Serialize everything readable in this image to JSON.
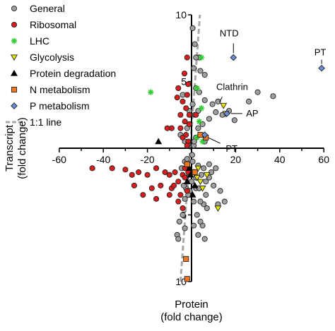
{
  "chart_data": {
    "type": "scatter",
    "xlabel": [
      "Protein",
      "(fold change)"
    ],
    "ylabel": [
      "Transcript",
      "(fold change)"
    ],
    "xlim": [
      -60,
      60
    ],
    "ylim": [
      -10,
      10
    ],
    "x_ticks": [
      -60,
      -40,
      -20,
      20,
      40,
      60
    ],
    "x_tick_labels": [
      "-60",
      "-40",
      "-20",
      "20",
      "40",
      "60"
    ],
    "y_ticks": [
      10,
      5,
      -5,
      -10
    ],
    "y_tick_labels": [
      "10",
      "5",
      "5",
      "10"
    ],
    "grid": false,
    "legend_position": "top-left",
    "legend": [
      {
        "key": "general",
        "label": "General"
      },
      {
        "key": "ribosomal",
        "label": "Ribosomal"
      },
      {
        "key": "lhc",
        "label": "LHC"
      },
      {
        "key": "glycolysis",
        "label": "Glycolysis"
      },
      {
        "key": "protein_degradation",
        "label": "Protein degradation"
      },
      {
        "key": "n_metabolism",
        "label": "N metabolism"
      },
      {
        "key": "p_metabolism",
        "label": "P metabolism"
      },
      {
        "key": "one_to_one",
        "label": "1:1 line"
      }
    ],
    "styles": {
      "general": {
        "color": "#a0a0a0",
        "marker": "circle"
      },
      "ribosomal": {
        "color": "#d81e1e",
        "marker": "circle"
      },
      "lhc": {
        "color": "#33cc33",
        "marker": "star"
      },
      "glycolysis": {
        "color": "#e6e600",
        "marker": "triangle-down"
      },
      "protein_degradation": {
        "color": "#000000",
        "marker": "triangle-up"
      },
      "n_metabolism": {
        "color": "#f07820",
        "marker": "square"
      },
      "p_metabolism": {
        "color": "#6a8fd6",
        "marker": "diamond"
      },
      "one_to_one": {
        "color": "#a8a8a8",
        "dash": "dashed"
      }
    },
    "one_to_one_line": {
      "x": [
        -5,
        3.8
      ],
      "y": [
        -10,
        10
      ]
    },
    "series": [
      {
        "key": "general",
        "points": [
          [
            0.5,
            9.0
          ],
          [
            1.5,
            7.8
          ],
          [
            3.5,
            6.8
          ],
          [
            6,
            5.5
          ],
          [
            2,
            6.8
          ],
          [
            1,
            6
          ],
          [
            4,
            5.8
          ],
          [
            2,
            4.5
          ],
          [
            3.5,
            4.2
          ],
          [
            6,
            3.6
          ],
          [
            9.5,
            3.3
          ],
          [
            12,
            3.5
          ],
          [
            17,
            2.8
          ],
          [
            19.5,
            2.1
          ],
          [
            26,
            3.5
          ],
          [
            30,
            4.2
          ],
          [
            37,
            3.9
          ],
          [
            14,
            2.5
          ],
          [
            11,
            2.7
          ],
          [
            8,
            2.2
          ],
          [
            5,
            1.8
          ],
          [
            3,
            1.5
          ],
          [
            1.5,
            2.5
          ],
          [
            0.5,
            3.3
          ],
          [
            -1,
            2.8
          ],
          [
            -2,
            1.5
          ],
          [
            2,
            0.8
          ],
          [
            4,
            1
          ],
          [
            6,
            0.5
          ],
          [
            -4,
            4
          ],
          [
            -5,
            1
          ],
          [
            -3,
            0.5
          ],
          [
            -1.5,
            0.3
          ],
          [
            1,
            0.2
          ],
          [
            3,
            2.8
          ],
          [
            0.5,
            -1
          ],
          [
            1.5,
            -1.8
          ],
          [
            3,
            -1.3
          ],
          [
            4.5,
            -2
          ],
          [
            5.5,
            -1.5
          ],
          [
            6.5,
            -2.5
          ],
          [
            8,
            -2.2
          ],
          [
            9,
            -1.8
          ],
          [
            10,
            -2.8
          ],
          [
            13,
            -3.2
          ],
          [
            15,
            -4
          ],
          [
            12,
            -4.2
          ],
          [
            6.5,
            -3.5
          ],
          [
            5.5,
            -4.2
          ],
          [
            4,
            -4
          ],
          [
            2.5,
            -5
          ],
          [
            1,
            -4
          ],
          [
            1,
            -5.8
          ],
          [
            3,
            -6.5
          ],
          [
            5,
            -5.8
          ],
          [
            6,
            -6.8
          ],
          [
            2,
            -3
          ],
          [
            0,
            -2.5
          ],
          [
            -0.8,
            -3.2
          ],
          [
            -1.5,
            -3.5
          ],
          [
            -2.5,
            -3
          ],
          [
            -3.5,
            -2.8
          ],
          [
            -4.5,
            -1.5
          ],
          [
            -3,
            -1
          ],
          [
            -2,
            -0.8
          ],
          [
            -3,
            -3.8
          ],
          [
            -4,
            -5
          ],
          [
            -5.5,
            -5.5
          ],
          [
            -6.5,
            -6.5
          ],
          [
            -6,
            -6.8
          ],
          [
            -3,
            -6
          ],
          [
            2,
            -2.2
          ],
          [
            3.5,
            -3
          ],
          [
            8,
            -1.2
          ],
          [
            11,
            -1.5
          ],
          [
            7,
            -4.5
          ],
          [
            4,
            -5.5
          ],
          [
            0.3,
            -0.5
          ],
          [
            1.2,
            0.5
          ],
          [
            -2.5,
            -2.2
          ]
        ]
      },
      {
        "key": "ribosomal",
        "points": [
          [
            -2,
            6.8
          ],
          [
            -3.2,
            5.6
          ],
          [
            -6,
            4.5
          ],
          [
            -1.5,
            4.8
          ],
          [
            -2,
            4
          ],
          [
            -4,
            3.5
          ],
          [
            -6.5,
            3.8
          ],
          [
            -2.5,
            3
          ],
          [
            -1,
            2.5
          ],
          [
            -5,
            2.5
          ],
          [
            -3,
            2
          ],
          [
            -9,
            1.5
          ],
          [
            -11,
            1.5
          ],
          [
            -5,
            1.5
          ],
          [
            -2.5,
            1
          ],
          [
            -4,
            0.8
          ],
          [
            -1.5,
            0.5
          ],
          [
            -1,
            1.8
          ],
          [
            2,
            2.5
          ],
          [
            -2,
            0.2
          ],
          [
            -16,
            -1.5
          ],
          [
            -24,
            -1.8
          ],
          [
            -27,
            -2
          ],
          [
            -30,
            -1.6
          ],
          [
            -36,
            -1.5
          ],
          [
            -45,
            -1.5
          ],
          [
            -20,
            -2
          ],
          [
            -12,
            -1.8
          ],
          [
            -10,
            -2
          ],
          [
            -6,
            -2.5
          ],
          [
            -4,
            -2
          ],
          [
            -3,
            -1.5
          ],
          [
            -1.5,
            -1.8
          ],
          [
            -14,
            -2.8
          ],
          [
            -18,
            -3
          ],
          [
            -22,
            -3.5
          ],
          [
            -9,
            -3
          ],
          [
            -5,
            -3.5
          ],
          [
            -10,
            -3.5
          ],
          [
            -6,
            -4
          ],
          [
            -4,
            -4.5
          ],
          [
            -2,
            -3.2
          ],
          [
            -8,
            -2.8
          ],
          [
            -3,
            -2.2
          ],
          [
            -7.5,
            -1.8
          ],
          [
            -26,
            -2.8
          ],
          [
            -16,
            -3.8
          ]
        ]
      },
      {
        "key": "lhc",
        "points": [
          [
            -18.5,
            4.2
          ],
          [
            4.5,
            6.8
          ],
          [
            2.5,
            4.5
          ],
          [
            4.5,
            3
          ],
          [
            3.5,
            2
          ],
          [
            2.5,
            0.8
          ],
          [
            5,
            0.5
          ]
        ]
      },
      {
        "key": "glycolysis",
        "points": [
          [
            14.5,
            3.2
          ],
          [
            15.5,
            2.6
          ],
          [
            3,
            -1.5
          ],
          [
            4,
            -2.5
          ],
          [
            5,
            -3
          ],
          [
            7,
            -2
          ],
          [
            2.5,
            -2.2
          ],
          [
            12,
            -4.5
          ]
        ]
      },
      {
        "key": "protein_degradation",
        "points": [
          [
            -15,
            0.5
          ],
          [
            -1,
            -1.5
          ],
          [
            1,
            -1.8
          ],
          [
            -2,
            -2.5
          ],
          [
            0.5,
            -3.5
          ],
          [
            -0.5,
            -2
          ],
          [
            1.5,
            -2.8
          ]
        ]
      },
      {
        "key": "n_metabolism",
        "points": [
          [
            4,
            1
          ],
          [
            6.5,
            0.8
          ],
          [
            -2,
            -1.2
          ],
          [
            1.5,
            -1.8
          ],
          [
            -2.5,
            -8.3
          ],
          [
            -2,
            -9.8
          ]
        ]
      },
      {
        "key": "p_metabolism",
        "points": [
          [
            19,
            6.8
          ],
          [
            59,
            6
          ],
          [
            16,
            2.6
          ],
          [
            6,
            1
          ]
        ]
      }
    ],
    "annotations": [
      {
        "text": "NTD",
        "x": 19,
        "y": 6.8
      },
      {
        "text": "PT",
        "x": 59,
        "y": 6
      },
      {
        "text": "Clathrin",
        "x": 12,
        "y": 3.2
      },
      {
        "text": "AP",
        "x": 16,
        "y": 2.6
      },
      {
        "text": "PT",
        "x": 6,
        "y": 1
      }
    ]
  }
}
